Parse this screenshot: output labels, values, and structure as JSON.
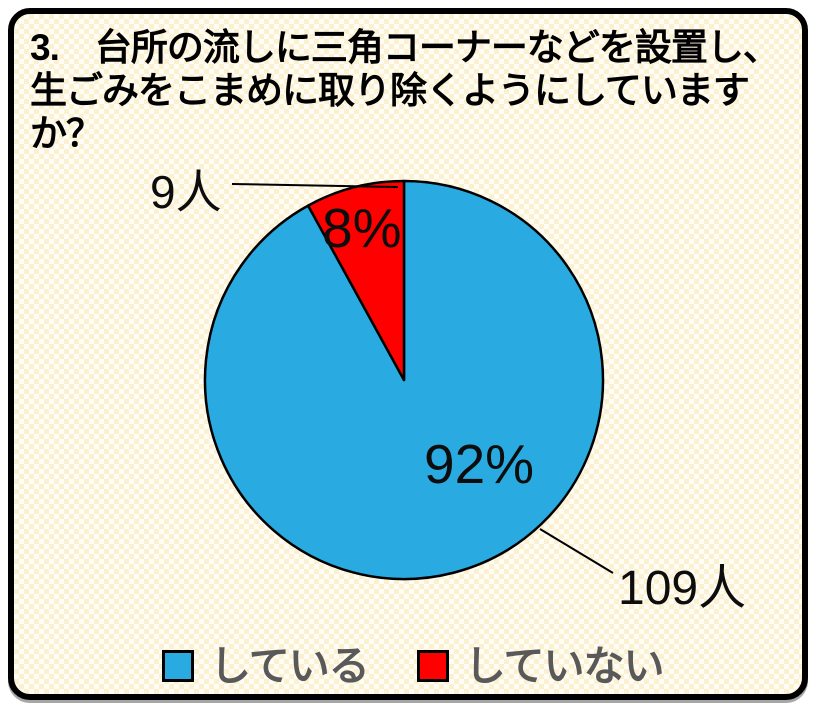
{
  "title": {
    "lines": [
      "3.　台所の流しに三角コーナーなどを設置し、",
      "生ごみをこまめに取り除くようにしています",
      "か？"
    ]
  },
  "chart_data": {
    "type": "pie",
    "title": "3.　台所の流しに三角コーナーなどを設置し、生ごみをこまめに取り除くようにしていますか？",
    "categories": [
      "している",
      "していない"
    ],
    "values": [
      109,
      9
    ],
    "unit": "人",
    "percentages": [
      92,
      8
    ],
    "colors": [
      "#29ABE2",
      "#FF0000"
    ],
    "start_angle": "top",
    "direction": "clockwise",
    "stroke_color": "#000000",
    "legend_position": "bottom"
  },
  "labels": {
    "major_percent": "92%",
    "minor_percent": "8%",
    "major_count": "109人",
    "minor_count": "9人"
  },
  "legend": {
    "items": [
      {
        "label": "している",
        "color": "#29ABE2"
      },
      {
        "label": "していない",
        "color": "#FF0000"
      }
    ],
    "text_color": "#595959"
  }
}
